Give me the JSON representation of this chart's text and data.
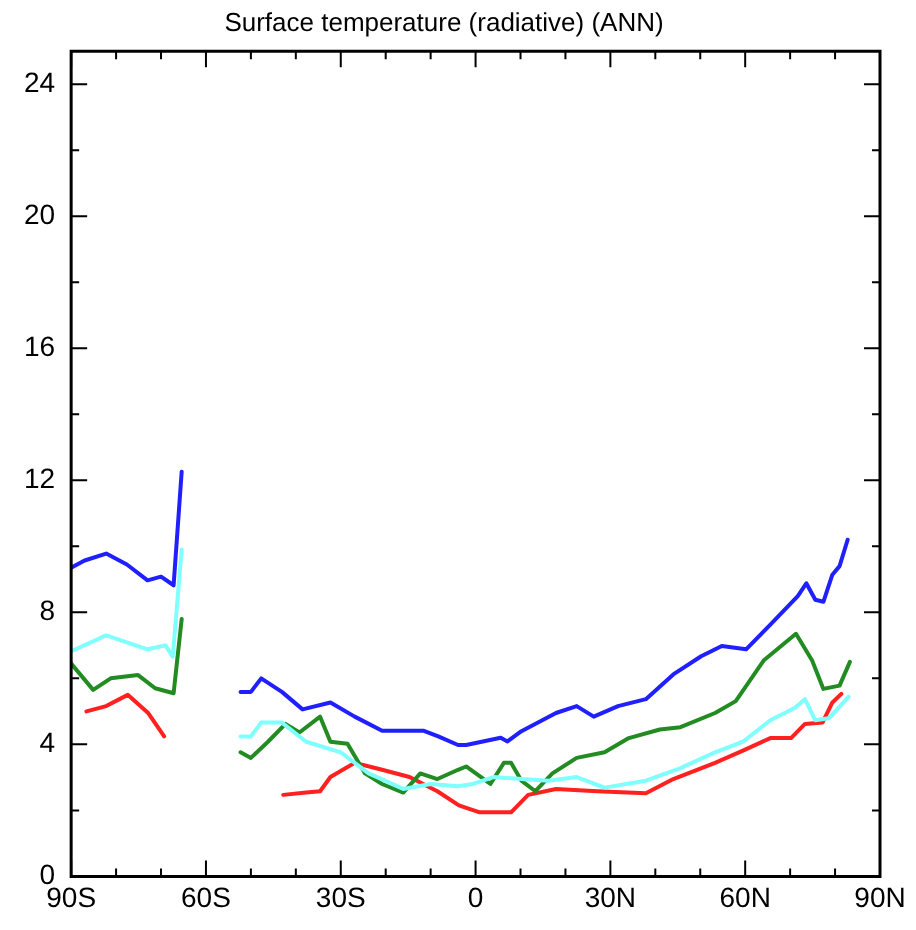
{
  "chart_data": {
    "type": "line",
    "title": "Surface temperature (radiative) (ANN)",
    "xlim": [
      -90,
      90
    ],
    "xticks": [
      {
        "value": -90,
        "label": "90S"
      },
      {
        "value": -80,
        "label": null
      },
      {
        "value": -70,
        "label": null
      },
      {
        "value": -60,
        "label": "60S"
      },
      {
        "value": -50,
        "label": null
      },
      {
        "value": -40,
        "label": null
      },
      {
        "value": -30,
        "label": "30S"
      },
      {
        "value": -20,
        "label": null
      },
      {
        "value": -10,
        "label": null
      },
      0,
      {
        "value": 10,
        "label": null
      },
      {
        "value": 20,
        "label": null
      },
      {
        "value": 30,
        "label": "30N"
      },
      {
        "value": 40,
        "label": null
      },
      {
        "value": 50,
        "label": null
      },
      {
        "value": 60,
        "label": "60N"
      },
      {
        "value": 70,
        "label": null
      },
      {
        "value": 80,
        "label": null
      },
      {
        "value": 90,
        "label": "90N"
      }
    ],
    "ylim": [
      0,
      25
    ],
    "yticks": [
      0,
      {
        "value": 2,
        "label": null
      },
      4,
      {
        "value": 6,
        "label": null
      },
      8,
      {
        "value": 10,
        "label": null
      },
      12,
      {
        "value": 14,
        "label": null
      },
      16,
      {
        "value": 18,
        "label": null
      },
      20,
      {
        "value": 22,
        "label": null
      },
      24
    ],
    "grid": false,
    "legend": false,
    "marker": "none",
    "line_style": "solid",
    "series": [
      {
        "color": "#1f1fff",
        "x": [
          -90,
          -87,
          -82.2,
          -77.6,
          -73,
          -70,
          -67.2,
          -65.4,
          -60,
          -52.3,
          -50,
          -47.7,
          -43.1,
          -38.5,
          -32.3,
          -26.9,
          -20.8,
          -11.5,
          -8.3,
          -3.9,
          -2.1,
          5.6,
          7.1,
          10.2,
          17.9,
          22.5,
          26.3,
          31.7,
          37.9,
          44,
          50.2,
          54.8,
          60.2,
          65.6,
          71.7,
          73.6,
          75.6,
          77.4,
          79.4,
          81,
          82.8
        ],
        "values": [
          9.35,
          9.57,
          9.78,
          9.45,
          8.97,
          9.08,
          8.82,
          12.26,
          null,
          5.59,
          5.59,
          6.0,
          5.59,
          5.06,
          5.27,
          4.84,
          4.41,
          4.41,
          4.24,
          3.98,
          3.98,
          4.2,
          4.09,
          4.4,
          4.95,
          5.16,
          4.84,
          5.16,
          5.37,
          6.12,
          6.67,
          6.98,
          6.88,
          7.63,
          8.49,
          8.88,
          8.38,
          8.32,
          9.14,
          9.4,
          10.2
        ]
      },
      {
        "color": "#80ffff",
        "x": [
          -90,
          -82.2,
          -73,
          -69,
          -67.4,
          -65.4,
          -60,
          -52.3,
          -50,
          -47.7,
          -43.1,
          -37.7,
          -30,
          -23.8,
          -16.1,
          -10,
          -3.9,
          -0.6,
          4,
          10.2,
          16.3,
          22.5,
          28.7,
          37.9,
          45.6,
          53.3,
          59.5,
          65.6,
          71,
          73.3,
          75.6,
          78.6,
          83
        ],
        "values": [
          6.82,
          7.3,
          6.88,
          7.0,
          6.66,
          9.9,
          null,
          4.24,
          4.24,
          4.66,
          4.66,
          4.08,
          3.76,
          3.12,
          2.65,
          2.8,
          2.73,
          2.8,
          3.01,
          2.95,
          2.9,
          3.01,
          2.69,
          2.9,
          3.28,
          3.76,
          4.08,
          4.73,
          5.1,
          5.37,
          4.73,
          4.79,
          5.44
        ]
      },
      {
        "color": "#228b22",
        "x": [
          -90,
          -85.1,
          -81.2,
          -75.1,
          -71.3,
          -67.2,
          -65.4,
          -60,
          -52.3,
          -50,
          -46.2,
          -42.3,
          -39.2,
          -34.6,
          -32.3,
          -28.5,
          -24.6,
          -20.8,
          -16.1,
          -12.3,
          -8.5,
          -3.9,
          -2.1,
          3.3,
          6.3,
          7.9,
          10.2,
          13.3,
          17.1,
          22.5,
          28.7,
          34.1,
          41,
          45.6,
          53.3,
          57.9,
          64.1,
          68,
          71.3,
          74.9,
          77.4,
          81,
          83.3
        ],
        "values": [
          6.45,
          5.65,
          6.0,
          6.1,
          5.7,
          5.55,
          7.8,
          null,
          3.76,
          3.59,
          4.08,
          4.62,
          4.36,
          4.84,
          4.08,
          4.02,
          3.12,
          2.8,
          2.54,
          3.12,
          2.95,
          3.23,
          3.33,
          2.8,
          3.44,
          3.44,
          2.9,
          2.58,
          3.12,
          3.59,
          3.76,
          4.19,
          4.45,
          4.52,
          4.95,
          5.31,
          6.54,
          6.98,
          7.35,
          6.54,
          5.68,
          5.78,
          6.5
        ]
      },
      {
        "color": "#ff2020",
        "x": [
          -86.6,
          -82.2,
          -77.4,
          -72.8,
          -69.3,
          -60,
          -42.8,
          -37.7,
          -34.6,
          -32.3,
          -26.9,
          -20.8,
          -14.7,
          -8.5,
          -3.7,
          0.9,
          7.9,
          11.7,
          17.9,
          27.1,
          37.9,
          44,
          53.3,
          59.5,
          65.6,
          70.2,
          73.3,
          77.2,
          79.4,
          81.4
        ],
        "values": [
          5.0,
          5.16,
          5.5,
          4.94,
          4.24,
          null,
          2.47,
          2.54,
          2.58,
          3.01,
          3.44,
          3.23,
          3.01,
          2.58,
          2.15,
          1.94,
          1.94,
          2.47,
          2.65,
          2.58,
          2.52,
          2.95,
          3.44,
          3.81,
          4.19,
          4.19,
          4.62,
          4.66,
          5.27,
          5.53
        ]
      }
    ]
  }
}
